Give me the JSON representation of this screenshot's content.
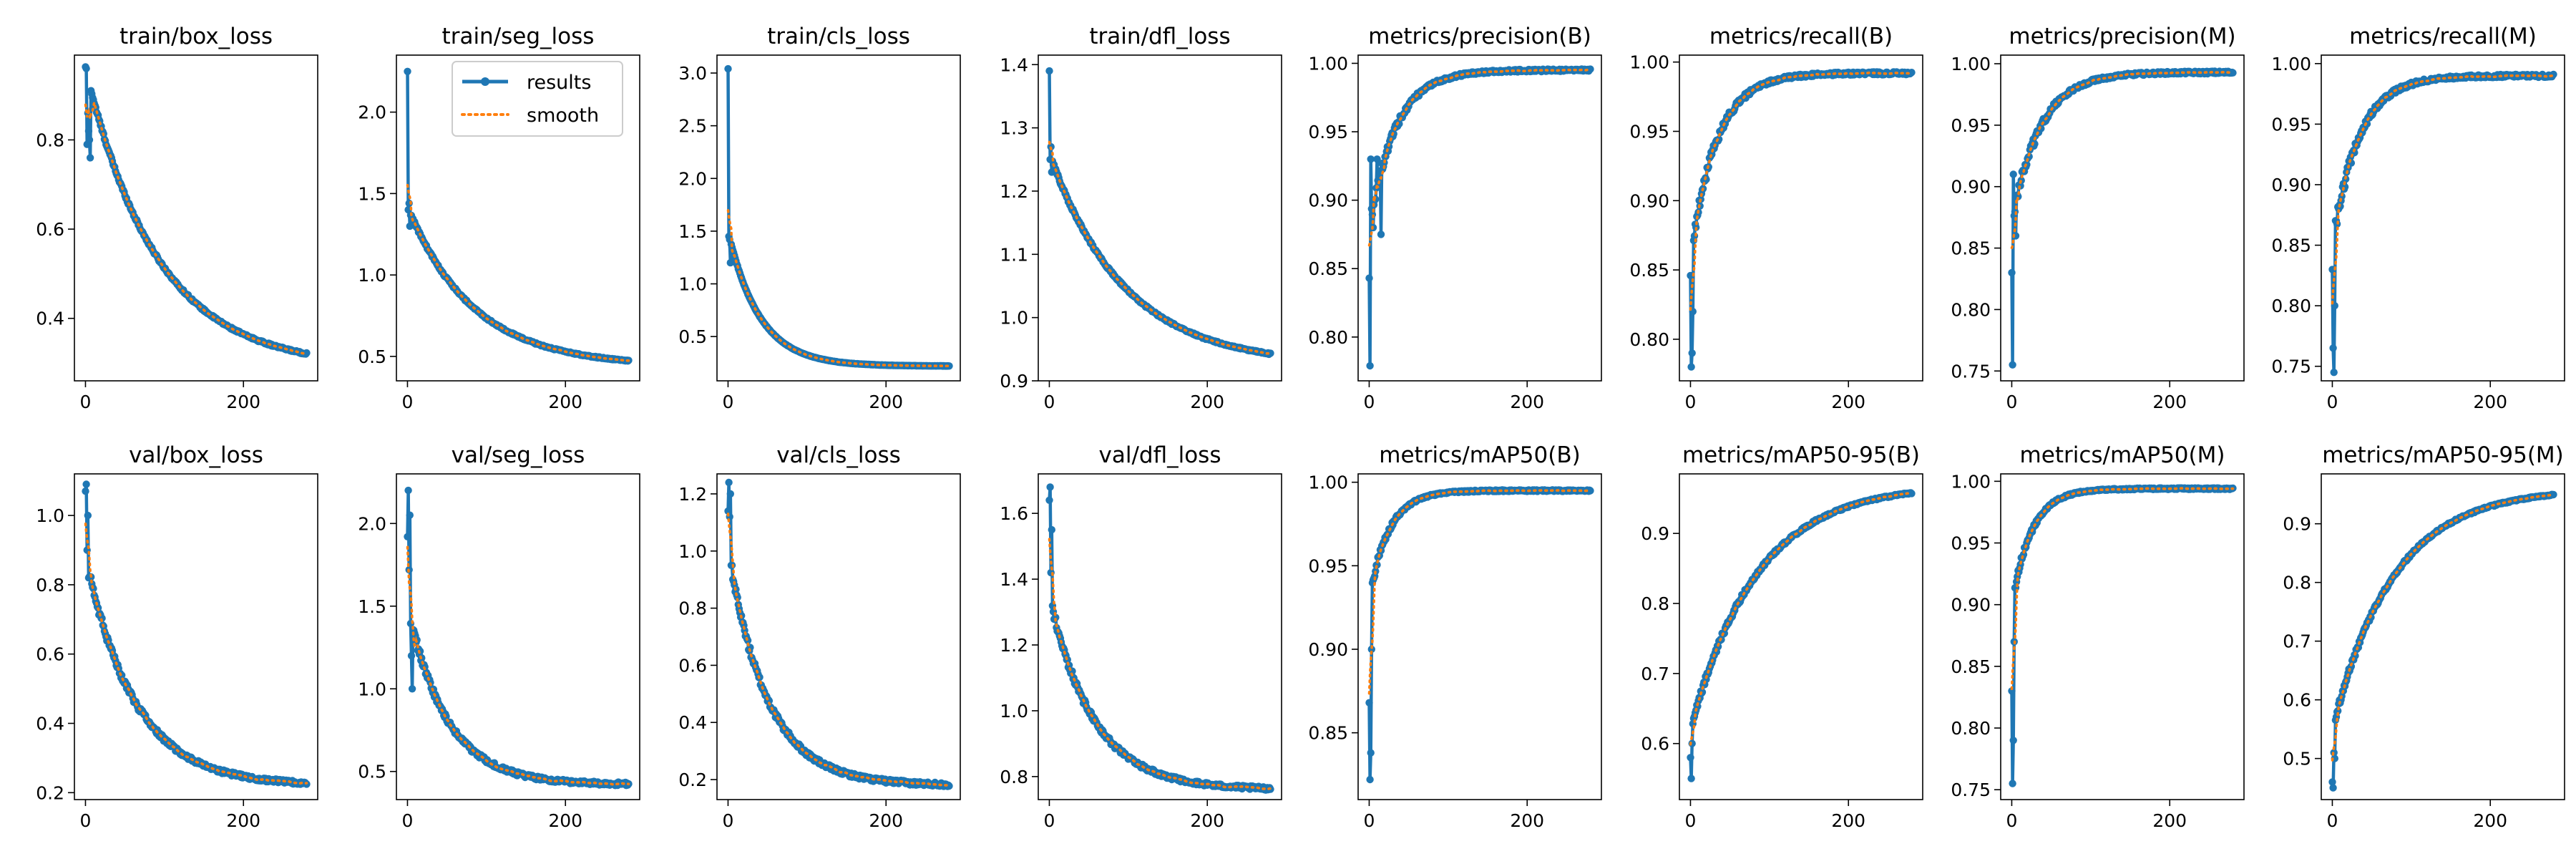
{
  "figure_colors": {
    "results": "#1f77b4",
    "smooth": "#ff7f0e",
    "axes": "#000000",
    "background": "#ffffff"
  },
  "legend": {
    "results_label": "results",
    "smooth_label": "smooth"
  },
  "chart_data": [
    {
      "type": "line",
      "title": "train/box_loss",
      "x_max": 280,
      "xticks": [
        0,
        200
      ],
      "xtick_labels": [
        "0",
        "200"
      ],
      "yticks": [
        0.4,
        0.6,
        0.8
      ],
      "ytick_labels": [
        "0.4",
        "0.6",
        "0.8"
      ],
      "ylim": [
        0.26,
        0.99
      ],
      "trend": "decay",
      "y_start": 0.96,
      "y_end": 0.29,
      "rate": 0.011,
      "noise": 0.005,
      "spikes": [
        [
          1,
          0.96
        ],
        [
          2,
          0.79
        ],
        [
          3,
          0.86
        ],
        [
          4,
          0.82
        ],
        [
          5,
          0.8
        ],
        [
          6,
          0.76
        ]
      ],
      "series": [
        {
          "name": "results",
          "values_ref": "generated from y_start/y_end/trend"
        },
        {
          "name": "smooth"
        }
      ]
    },
    {
      "type": "line",
      "title": "train/seg_loss",
      "x_max": 280,
      "xticks": [
        0,
        200
      ],
      "xtick_labels": [
        "0",
        "200"
      ],
      "yticks": [
        0.5,
        1.0,
        1.5,
        2.0
      ],
      "ytick_labels": [
        "0.5",
        "1.0",
        "1.5",
        "2.0"
      ],
      "ylim": [
        0.35,
        2.35
      ],
      "trend": "decay",
      "y_start": 1.42,
      "y_end": 0.44,
      "rate": 0.012,
      "noise": 0.01,
      "spikes": [
        [
          0,
          2.25
        ],
        [
          1,
          1.4
        ],
        [
          2,
          1.44
        ],
        [
          3,
          1.3
        ]
      ],
      "legend_location": "upper right"
    },
    {
      "type": "line",
      "title": "train/cls_loss",
      "x_max": 280,
      "xticks": [
        0,
        200
      ],
      "xtick_labels": [
        "0",
        "200"
      ],
      "yticks": [
        0.5,
        1.0,
        1.5,
        2.0,
        2.5,
        3.0
      ],
      "ytick_labels": [
        "0.5",
        "1.0",
        "1.5",
        "2.0",
        "2.5",
        "3.0"
      ],
      "ylim": [
        0.08,
        3.17
      ],
      "trend": "decay",
      "y_start": 1.5,
      "y_end": 0.22,
      "rate": 0.025,
      "noise": 0.004,
      "spikes": [
        [
          0,
          3.04
        ],
        [
          1,
          1.45
        ],
        [
          2,
          1.42
        ],
        [
          3,
          1.2
        ]
      ]
    },
    {
      "type": "line",
      "title": "train/dfl_loss",
      "x_max": 280,
      "xticks": [
        0,
        200
      ],
      "xtick_labels": [
        "0",
        "200"
      ],
      "yticks": [
        0.9,
        1.0,
        1.1,
        1.2,
        1.3,
        1.4
      ],
      "ytick_labels": [
        "0.9",
        "1.0",
        "1.1",
        "1.2",
        "1.3",
        "1.4"
      ],
      "ylim": [
        0.9,
        1.415
      ],
      "trend": "decay",
      "y_start": 1.26,
      "y_end": 0.925,
      "rate": 0.0105,
      "noise": 0.003,
      "spikes": [
        [
          0,
          1.39
        ],
        [
          1,
          1.25
        ],
        [
          2,
          1.27
        ],
        [
          3,
          1.23
        ]
      ]
    },
    {
      "type": "line",
      "title": "metrics/precision(B)",
      "x_max": 280,
      "xticks": [
        0,
        200
      ],
      "xtick_labels": [
        "0",
        "200"
      ],
      "yticks": [
        0.8,
        0.85,
        0.9,
        0.95,
        1.0
      ],
      "ytick_labels": [
        "0.80",
        "0.85",
        "0.90",
        "0.95",
        "1.00"
      ],
      "ylim": [
        0.768,
        1.006
      ],
      "trend": "rise",
      "y_start": 0.88,
      "y_end": 0.995,
      "rate": 0.03,
      "noise": 0.006,
      "spikes": [
        [
          0,
          0.843
        ],
        [
          1,
          0.779
        ],
        [
          2,
          0.93
        ],
        [
          5,
          0.88
        ],
        [
          10,
          0.93
        ],
        [
          15,
          0.875
        ]
      ]
    },
    {
      "type": "line",
      "title": "metrics/recall(B)",
      "x_max": 280,
      "xticks": [
        0,
        200
      ],
      "xtick_labels": [
        "0",
        "200"
      ],
      "yticks": [
        0.8,
        0.85,
        0.9,
        0.95,
        1.0
      ],
      "ytick_labels": [
        "0.80",
        "0.85",
        "0.90",
        "0.95",
        "1.00"
      ],
      "ylim": [
        0.77,
        1.005
      ],
      "trend": "rise",
      "y_start": 0.86,
      "y_end": 0.992,
      "rate": 0.03,
      "noise": 0.007,
      "spikes": [
        [
          0,
          0.846
        ],
        [
          1,
          0.78
        ],
        [
          2,
          0.79
        ],
        [
          3,
          0.82
        ]
      ]
    },
    {
      "type": "line",
      "title": "metrics/precision(M)",
      "x_max": 280,
      "xticks": [
        0,
        200
      ],
      "xtick_labels": [
        "0",
        "200"
      ],
      "yticks": [
        0.75,
        0.8,
        0.85,
        0.9,
        0.95,
        1.0
      ],
      "ytick_labels": [
        "0.75",
        "0.80",
        "0.85",
        "0.90",
        "0.95",
        "1.00"
      ],
      "ylim": [
        0.742,
        1.007
      ],
      "trend": "rise",
      "y_start": 0.87,
      "y_end": 0.993,
      "rate": 0.028,
      "noise": 0.007,
      "spikes": [
        [
          0,
          0.83
        ],
        [
          1,
          0.755
        ],
        [
          2,
          0.91
        ],
        [
          5,
          0.86
        ],
        [
          12,
          0.905
        ]
      ]
    },
    {
      "type": "line",
      "title": "metrics/recall(M)",
      "x_max": 280,
      "xticks": [
        0,
        200
      ],
      "xtick_labels": [
        "0",
        "200"
      ],
      "yticks": [
        0.75,
        0.8,
        0.85,
        0.9,
        0.95,
        1.0
      ],
      "ytick_labels": [
        "0.75",
        "0.80",
        "0.85",
        "0.90",
        "0.95",
        "1.00"
      ],
      "ylim": [
        0.738,
        1.007
      ],
      "trend": "rise",
      "y_start": 0.85,
      "y_end": 0.99,
      "rate": 0.03,
      "noise": 0.008,
      "spikes": [
        [
          0,
          0.83
        ],
        [
          1,
          0.765
        ],
        [
          2,
          0.745
        ],
        [
          3,
          0.8
        ]
      ]
    },
    {
      "type": "line",
      "title": "val/box_loss",
      "x_max": 280,
      "xticks": [
        0,
        200
      ],
      "xtick_labels": [
        "0",
        "200"
      ],
      "yticks": [
        0.2,
        0.4,
        0.6,
        0.8,
        1.0
      ],
      "ytick_labels": [
        "0.2",
        "0.4",
        "0.6",
        "0.8",
        "1.0"
      ],
      "ylim": [
        0.18,
        1.12
      ],
      "trend": "decay",
      "y_start": 0.88,
      "y_end": 0.22,
      "rate": 0.016,
      "noise": 0.015,
      "spikes": [
        [
          0,
          1.07
        ],
        [
          1,
          1.09
        ],
        [
          2,
          0.9
        ],
        [
          3,
          1.0
        ],
        [
          4,
          0.82
        ]
      ]
    },
    {
      "type": "line",
      "title": "val/seg_loss",
      "x_max": 280,
      "xticks": [
        0,
        200
      ],
      "xtick_labels": [
        "0",
        "200"
      ],
      "yticks": [
        0.5,
        1.0,
        1.5,
        2.0
      ],
      "ytick_labels": [
        "0.5",
        "1.0",
        "1.5",
        "2.0"
      ],
      "ylim": [
        0.33,
        2.3
      ],
      "trend": "decay",
      "y_start": 1.5,
      "y_end": 0.42,
      "rate": 0.02,
      "noise": 0.03,
      "spikes": [
        [
          0,
          1.92
        ],
        [
          1,
          2.2
        ],
        [
          2,
          1.72
        ],
        [
          3,
          2.05
        ],
        [
          5,
          1.2
        ],
        [
          6,
          1.0
        ]
      ]
    },
    {
      "type": "line",
      "title": "val/cls_loss",
      "x_max": 280,
      "xticks": [
        0,
        200
      ],
      "xtick_labels": [
        "0",
        "200"
      ],
      "yticks": [
        0.2,
        0.4,
        0.6,
        0.8,
        1.0,
        1.2
      ],
      "ytick_labels": [
        "0.2",
        "0.4",
        "0.6",
        "0.8",
        "1.0",
        "1.2"
      ],
      "ylim": [
        0.13,
        1.27
      ],
      "trend": "decay",
      "y_start": 1.0,
      "y_end": 0.18,
      "rate": 0.02,
      "noise": 0.02,
      "spikes": [
        [
          0,
          1.14
        ],
        [
          1,
          1.24
        ],
        [
          2,
          1.12
        ],
        [
          3,
          1.2
        ],
        [
          5,
          0.95
        ]
      ]
    },
    {
      "type": "line",
      "title": "val/dfl_loss",
      "x_max": 280,
      "xticks": [
        0,
        200
      ],
      "xtick_labels": [
        "0",
        "200"
      ],
      "yticks": [
        0.8,
        1.0,
        1.2,
        1.4,
        1.6
      ],
      "ytick_labels": [
        "0.8",
        "1.0",
        "1.2",
        "1.4",
        "1.6"
      ],
      "ylim": [
        0.73,
        1.72
      ],
      "trend": "decay",
      "y_start": 1.35,
      "y_end": 0.76,
      "rate": 0.018,
      "noise": 0.015,
      "spikes": [
        [
          0,
          1.64
        ],
        [
          1,
          1.68
        ],
        [
          2,
          1.42
        ],
        [
          3,
          1.55
        ]
      ]
    },
    {
      "type": "line",
      "title": "metrics/mAP50(B)",
      "x_max": 280,
      "xticks": [
        0,
        200
      ],
      "xtick_labels": [
        "0",
        "200"
      ],
      "yticks": [
        0.85,
        0.9,
        0.95,
        1.0
      ],
      "ytick_labels": [
        "0.85",
        "0.90",
        "0.95",
        "1.00"
      ],
      "ylim": [
        0.81,
        1.005
      ],
      "trend": "rise",
      "y_start": 0.93,
      "y_end": 0.995,
      "rate": 0.04,
      "noise": 0.003,
      "spikes": [
        [
          0,
          0.868
        ],
        [
          1,
          0.822
        ],
        [
          2,
          0.838
        ],
        [
          3,
          0.9
        ]
      ]
    },
    {
      "type": "line",
      "title": "metrics/mAP50-95(B)",
      "x_max": 280,
      "xticks": [
        0,
        200
      ],
      "xtick_labels": [
        "0",
        "200"
      ],
      "yticks": [
        0.6,
        0.7,
        0.8,
        0.9
      ],
      "ytick_labels": [
        "0.6",
        "0.7",
        "0.8",
        "0.9"
      ],
      "ylim": [
        0.52,
        0.985
      ],
      "trend": "rise",
      "y_start": 0.62,
      "y_end": 0.97,
      "rate": 0.012,
      "noise": 0.006,
      "spikes": [
        [
          0,
          0.58
        ],
        [
          1,
          0.55
        ],
        [
          2,
          0.6
        ]
      ]
    },
    {
      "type": "line",
      "title": "metrics/mAP50(M)",
      "x_max": 280,
      "xticks": [
        0,
        200
      ],
      "xtick_labels": [
        "0",
        "200"
      ],
      "yticks": [
        0.75,
        0.8,
        0.85,
        0.9,
        0.95,
        1.0
      ],
      "ytick_labels": [
        "0.75",
        "0.80",
        "0.85",
        "0.90",
        "0.95",
        "1.00"
      ],
      "ylim": [
        0.742,
        1.006
      ],
      "trend": "rise",
      "y_start": 0.9,
      "y_end": 0.994,
      "rate": 0.04,
      "noise": 0.004,
      "spikes": [
        [
          0,
          0.83
        ],
        [
          1,
          0.755
        ],
        [
          2,
          0.79
        ],
        [
          3,
          0.87
        ]
      ]
    },
    {
      "type": "line",
      "title": "metrics/mAP50-95(M)",
      "x_max": 280,
      "xticks": [
        0,
        200
      ],
      "xtick_labels": [
        "0",
        "200"
      ],
      "yticks": [
        0.5,
        0.6,
        0.7,
        0.8,
        0.9
      ],
      "ytick_labels": [
        "0.5",
        "0.6",
        "0.7",
        "0.8",
        "0.9"
      ],
      "ylim": [
        0.43,
        0.985
      ],
      "trend": "rise",
      "y_start": 0.55,
      "y_end": 0.96,
      "rate": 0.013,
      "noise": 0.006,
      "spikes": [
        [
          0,
          0.46
        ],
        [
          1,
          0.45
        ],
        [
          2,
          0.51
        ],
        [
          3,
          0.5
        ]
      ]
    }
  ]
}
